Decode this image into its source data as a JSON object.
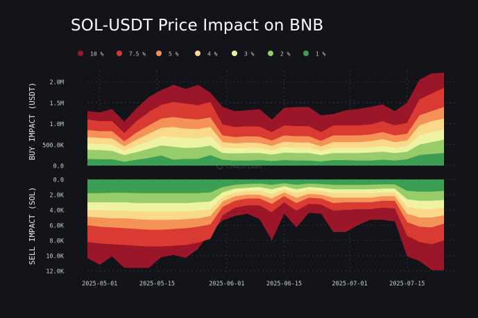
{
  "chart_data": [
    {
      "type": "area",
      "title": "SOL-USDT Price Impact on BNB",
      "ylabel": "BUY IMPACT (USDT)",
      "ylim": [
        0,
        2200000
      ],
      "yticks": [
        0,
        500000,
        1000000,
        1500000,
        2000000
      ],
      "ytick_labels": [
        "0.0",
        "500.0K",
        "1.0M",
        "1.5M",
        "2.0M"
      ],
      "x": [
        "2025-04-28",
        "2025-05-01",
        "2025-05-04",
        "2025-05-07",
        "2025-05-10",
        "2025-05-13",
        "2025-05-16",
        "2025-05-19",
        "2025-05-22",
        "2025-05-25",
        "2025-05-28",
        "2025-05-31",
        "2025-06-03",
        "2025-06-06",
        "2025-06-09",
        "2025-06-12",
        "2025-06-15",
        "2025-06-18",
        "2025-06-21",
        "2025-06-24",
        "2025-06-27",
        "2025-06-30",
        "2025-07-03",
        "2025-07-06",
        "2025-07-09",
        "2025-07-12",
        "2025-07-15",
        "2025-07-18",
        "2025-07-21",
        "2025-07-24"
      ],
      "series": [
        {
          "name": "1 %",
          "values": [
            160000,
            150000,
            150000,
            90000,
            140000,
            180000,
            240000,
            140000,
            160000,
            160000,
            250000,
            140000,
            120000,
            120000,
            130000,
            110000,
            130000,
            120000,
            120000,
            100000,
            130000,
            130000,
            120000,
            120000,
            140000,
            120000,
            150000,
            250000,
            280000,
            300000
          ]
        },
        {
          "name": "2 %",
          "values": [
            380000,
            370000,
            350000,
            250000,
            320000,
            400000,
            480000,
            450000,
            420000,
            430000,
            480000,
            300000,
            290000,
            300000,
            300000,
            260000,
            310000,
            300000,
            300000,
            250000,
            300000,
            300000,
            300000,
            310000,
            330000,
            300000,
            330000,
            500000,
            560000,
            620000
          ]
        },
        {
          "name": "3 %",
          "values": [
            530000,
            510000,
            500000,
            350000,
            470000,
            580000,
            700000,
            680000,
            660000,
            650000,
            700000,
            430000,
            410000,
            420000,
            420000,
            360000,
            440000,
            420000,
            420000,
            350000,
            420000,
            420000,
            420000,
            430000,
            470000,
            420000,
            460000,
            720000,
            800000,
            860000
          ]
        },
        {
          "name": "4 %",
          "values": [
            680000,
            660000,
            650000,
            460000,
            620000,
            760000,
            900000,
            920000,
            880000,
            870000,
            920000,
            560000,
            530000,
            550000,
            540000,
            470000,
            570000,
            550000,
            550000,
            460000,
            560000,
            560000,
            560000,
            580000,
            630000,
            560000,
            600000,
            960000,
            1060000,
            1120000
          ]
        },
        {
          "name": "5 %",
          "values": [
            850000,
            820000,
            820000,
            580000,
            790000,
            960000,
            1120000,
            1160000,
            1120000,
            1100000,
            1150000,
            720000,
            680000,
            700000,
            690000,
            600000,
            720000,
            700000,
            700000,
            590000,
            720000,
            720000,
            720000,
            740000,
            800000,
            720000,
            760000,
            1200000,
            1300000,
            1400000
          ]
        },
        {
          "name": "7.5 %",
          "values": [
            1100000,
            1060000,
            1060000,
            780000,
            1060000,
            1280000,
            1450000,
            1520000,
            1480000,
            1440000,
            1520000,
            980000,
            920000,
            940000,
            930000,
            800000,
            960000,
            940000,
            940000,
            800000,
            960000,
            960000,
            960000,
            980000,
            1060000,
            960000,
            1020000,
            1580000,
            1720000,
            1860000
          ]
        },
        {
          "name": "10 %",
          "values": [
            1300000,
            1270000,
            1350000,
            1050000,
            1370000,
            1640000,
            1800000,
            1930000,
            1830000,
            1930000,
            1740000,
            1400000,
            1300000,
            1320000,
            1350000,
            1100000,
            1380000,
            1400000,
            1400000,
            1200000,
            1230000,
            1320000,
            1350000,
            1400000,
            1460000,
            1300000,
            1500000,
            2050000,
            2200000,
            2220000
          ]
        }
      ]
    },
    {
      "type": "area",
      "ylabel": "SELL IMPACT (SOL)",
      "ylim": [
        0,
        12000
      ],
      "inverted": true,
      "yticks": [
        0,
        2000,
        4000,
        6000,
        8000,
        10000,
        12000
      ],
      "ytick_labels": [
        "0.0",
        "2.0K",
        "4.0K",
        "6.0K",
        "8.0K",
        "10.0K",
        "12.0K"
      ],
      "xtick_labels": [
        "2025-05-01",
        "2025-05-15",
        "2025-06-01",
        "2025-06-15",
        "2025-07-01",
        "2025-07-15"
      ],
      "xtick_values": [
        "2025-05-01",
        "2025-05-15",
        "2025-06-01",
        "2025-06-15",
        "2025-07-01",
        "2025-07-15"
      ],
      "series": [
        {
          "name": "1 %",
          "values": [
            1800,
            1800,
            1750,
            1750,
            1800,
            1800,
            1800,
            1800,
            1800,
            1800,
            1700,
            1000,
            700,
            600,
            550,
            700,
            500,
            700,
            550,
            600,
            700,
            700,
            700,
            700,
            650,
            650,
            1500,
            1600,
            1600,
            1500
          ]
        },
        {
          "name": "2 %",
          "values": [
            3000,
            3000,
            3000,
            3000,
            3100,
            3100,
            3100,
            3100,
            3100,
            3000,
            2900,
            1700,
            1200,
            1100,
            1000,
            1300,
            900,
            1300,
            1000,
            1100,
            1300,
            1300,
            1300,
            1300,
            1200,
            1200,
            2600,
            2800,
            2800,
            2700
          ]
        },
        {
          "name": "3 %",
          "values": [
            4000,
            4000,
            4100,
            4100,
            4200,
            4200,
            4200,
            4200,
            4200,
            4100,
            3900,
            2300,
            1700,
            1500,
            1500,
            1900,
            1300,
            1800,
            1400,
            1500,
            1800,
            1800,
            1800,
            1800,
            1700,
            1700,
            3600,
            3900,
            3900,
            3700
          ]
        },
        {
          "name": "4 %",
          "values": [
            4900,
            5000,
            5100,
            5100,
            5200,
            5300,
            5300,
            5300,
            5200,
            5100,
            4800,
            2900,
            2200,
            2000,
            2000,
            2500,
            1700,
            2400,
            1900,
            2000,
            2400,
            2400,
            2400,
            2400,
            2200,
            2200,
            4500,
            5000,
            5000,
            4700
          ]
        },
        {
          "name": "5 %",
          "values": [
            6000,
            6200,
            6300,
            6400,
            6500,
            6600,
            6600,
            6500,
            6400,
            6200,
            5900,
            3600,
            2800,
            2500,
            2500,
            3200,
            2200,
            3100,
            2400,
            2500,
            3100,
            3000,
            3000,
            3000,
            2800,
            2800,
            5600,
            6200,
            6300,
            5800
          ]
        },
        {
          "name": "7.5 %",
          "values": [
            8200,
            8400,
            8500,
            8600,
            8700,
            8800,
            8800,
            8700,
            8600,
            8300,
            7800,
            4700,
            3700,
            3400,
            3400,
            4300,
            3000,
            4100,
            3200,
            3300,
            4100,
            4000,
            3900,
            3900,
            3700,
            3800,
            7400,
            8200,
            8500,
            8000
          ]
        },
        {
          "name": "10 %",
          "values": [
            10300,
            11200,
            10100,
            11600,
            11600,
            11600,
            10200,
            9900,
            10300,
            9100,
            6900,
            5400,
            4800,
            4500,
            5200,
            8000,
            4500,
            6300,
            4400,
            4500,
            6900,
            6900,
            6000,
            5300,
            5300,
            5500,
            10100,
            10700,
            11900,
            11900
          ]
        }
      ]
    }
  ],
  "legend": [
    {
      "label": "10 %",
      "color": "#9b1628"
    },
    {
      "label": "7.5 %",
      "color": "#d93b32"
    },
    {
      "label": "5 %",
      "color": "#f59258"
    },
    {
      "label": "4 %",
      "color": "#fbd98a"
    },
    {
      "label": "3 %",
      "color": "#eef3a3"
    },
    {
      "label": "2 %",
      "color": "#98cc6a"
    },
    {
      "label": "1 %",
      "color": "#3a9e53"
    }
  ],
  "watermark": "CHAOS LABS",
  "colors": {
    "background": "#121419",
    "grid": "#3a3f4a",
    "text": "#c8ccd4"
  }
}
